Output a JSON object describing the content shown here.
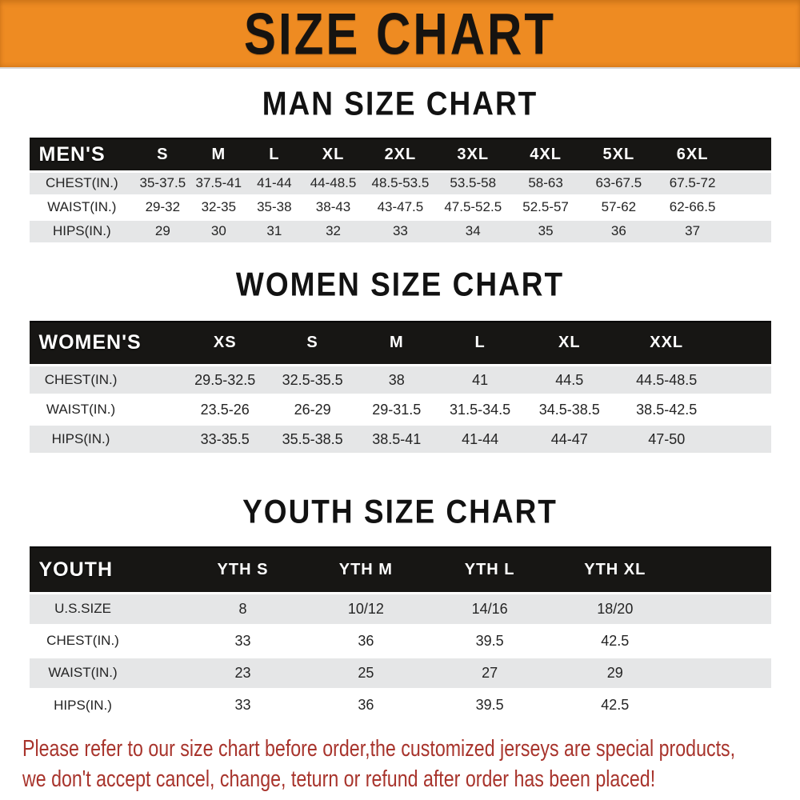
{
  "banner": {
    "title": "SIZE CHART"
  },
  "colors": {
    "banner_bg": "#ee8b22",
    "header_bar_bg": "#171614",
    "row_alt_bg": "#e5e6e7",
    "disclaimer_red": "#a8342c"
  },
  "sections": [
    {
      "title": "MAN SIZE CHART",
      "header_label": "MEN'S",
      "columns": [
        "S",
        "M",
        "L",
        "XL",
        "2XL",
        "3XL",
        "4XL",
        "5XL",
        "6XL"
      ],
      "rows": [
        {
          "label": "CHEST(IN.)",
          "values": [
            "35-37.5",
            "37.5-41",
            "41-44",
            "44-48.5",
            "48.5-53.5",
            "53.5-58",
            "58-63",
            "63-67.5",
            "67.5-72"
          ]
        },
        {
          "label": "WAIST(IN.)",
          "values": [
            "29-32",
            "32-35",
            "35-38",
            "38-43",
            "43-47.5",
            "47.5-52.5",
            "52.5-57",
            "57-62",
            "62-66.5"
          ]
        },
        {
          "label": "HIPS(IN.)",
          "values": [
            "29",
            "30",
            "31",
            "32",
            "33",
            "34",
            "35",
            "36",
            "37"
          ]
        }
      ]
    },
    {
      "title": "WOMEN SIZE CHART",
      "header_label": "WOMEN'S",
      "columns": [
        "XS",
        "S",
        "M",
        "L",
        "XL",
        "XXL"
      ],
      "rows": [
        {
          "label": "CHEST(IN.)",
          "values": [
            "29.5-32.5",
            "32.5-35.5",
            "38",
            "41",
            "44.5",
            "44.5-48.5"
          ]
        },
        {
          "label": "WAIST(IN.)",
          "values": [
            "23.5-26",
            "26-29",
            "29-31.5",
            "31.5-34.5",
            "34.5-38.5",
            "38.5-42.5"
          ]
        },
        {
          "label": "HIPS(IN.)",
          "values": [
            "33-35.5",
            "35.5-38.5",
            "38.5-41",
            "41-44",
            "44-47",
            "47-50"
          ]
        }
      ]
    },
    {
      "title": "YOUTH SIZE CHART",
      "header_label": "YOUTH",
      "columns": [
        "YTH S",
        "YTH M",
        "YTH L",
        "YTH XL"
      ],
      "rows": [
        {
          "label": "U.S.SIZE",
          "values": [
            "8",
            "10/12",
            "14/16",
            "18/20"
          ]
        },
        {
          "label": "CHEST(IN.)",
          "values": [
            "33",
            "36",
            "39.5",
            "42.5"
          ]
        },
        {
          "label": "WAIST(IN.)",
          "values": [
            "23",
            "25",
            "27",
            "29"
          ]
        },
        {
          "label": "HIPS(IN.)",
          "values": [
            "33",
            "36",
            "39.5",
            "42.5"
          ]
        }
      ]
    }
  ],
  "disclaimer": {
    "line1": "Please refer to our size chart before order,the customized jerseys are special products,",
    "line2": "we don't accept cancel, change, teturn or refund after order has been placed!"
  }
}
